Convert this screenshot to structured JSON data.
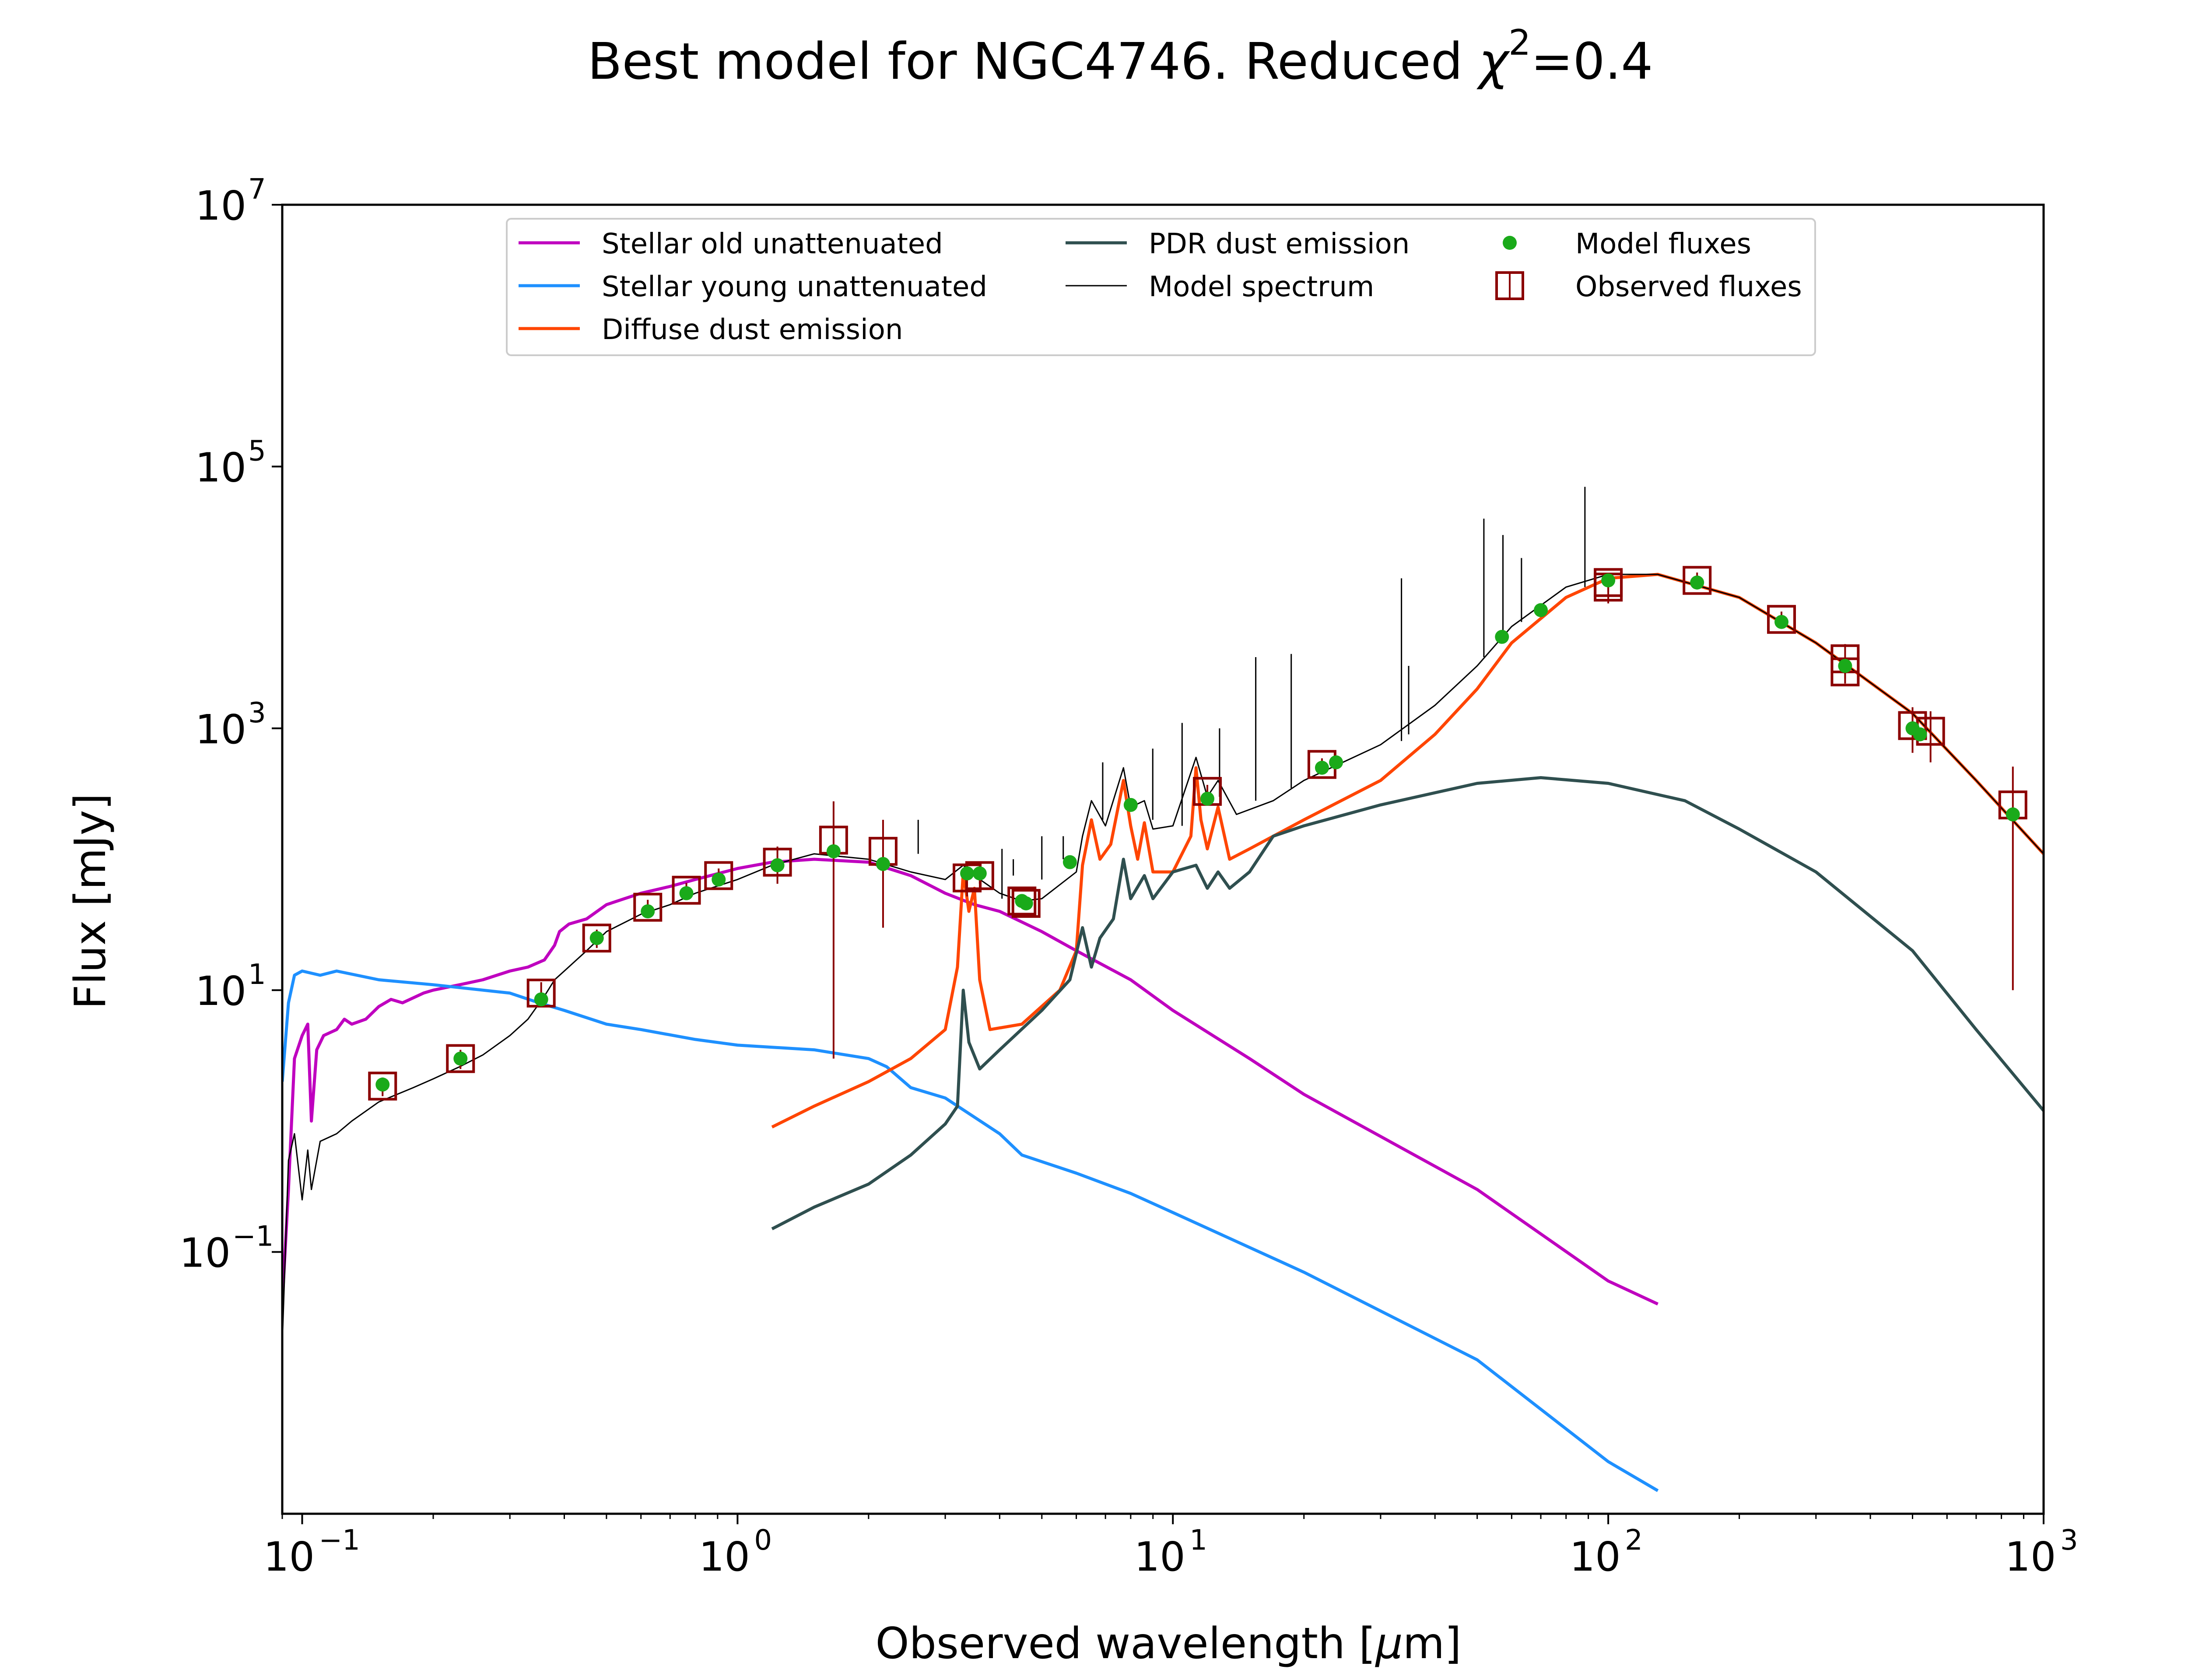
{
  "chart_data": {
    "type": "line",
    "title_main": "Best model for NGC4746. Reduced ",
    "title_chi": "χ",
    "title_sup": "2",
    "title_tail": "=0.4",
    "xlabel_main": "Observed wavelength [",
    "xlabel_mu": "μ",
    "xlabel_tail": "m]",
    "ylabel": "Flux [mJy]",
    "x_scale": "log",
    "y_scale": "log",
    "xlim": [
      0.09,
      1000
    ],
    "ylim": [
      0.001,
      10000000
    ],
    "grid": false,
    "legend_position": "top-center",
    "x_ticks": [
      {
        "value": 0.1,
        "base": "10",
        "exp": "−1"
      },
      {
        "value": 1,
        "base": "10",
        "exp": "0"
      },
      {
        "value": 10,
        "base": "10",
        "exp": "1"
      },
      {
        "value": 100,
        "base": "10",
        "exp": "2"
      },
      {
        "value": 1000,
        "base": "10",
        "exp": "3"
      }
    ],
    "y_ticks": [
      {
        "value": 0.1,
        "base": "10",
        "exp": "−1"
      },
      {
        "value": 10,
        "base": "10",
        "exp": "1"
      },
      {
        "value": 1000,
        "base": "10",
        "exp": "3"
      },
      {
        "value": 100000,
        "base": "10",
        "exp": "5"
      },
      {
        "value": 10000000,
        "base": "10",
        "exp": "7"
      }
    ],
    "series": [
      {
        "name": "Stellar old unattenuated",
        "kind": "line",
        "color": "#bf00bf",
        "points": [
          [
            0.09,
            0.04
          ],
          [
            0.093,
            0.3
          ],
          [
            0.096,
            3.0
          ],
          [
            0.1,
            4.5
          ],
          [
            0.103,
            5.5
          ],
          [
            0.105,
            1.0
          ],
          [
            0.108,
            3.5
          ],
          [
            0.112,
            4.5
          ],
          [
            0.12,
            5.0
          ],
          [
            0.125,
            6.0
          ],
          [
            0.13,
            5.5
          ],
          [
            0.14,
            6.0
          ],
          [
            0.15,
            7.5
          ],
          [
            0.16,
            8.5
          ],
          [
            0.17,
            8.0
          ],
          [
            0.19,
            9.5
          ],
          [
            0.2,
            10
          ],
          [
            0.23,
            11
          ],
          [
            0.26,
            12
          ],
          [
            0.3,
            14
          ],
          [
            0.33,
            15
          ],
          [
            0.36,
            17
          ],
          [
            0.38,
            22
          ],
          [
            0.39,
            28
          ],
          [
            0.41,
            32
          ],
          [
            0.45,
            35
          ],
          [
            0.5,
            45
          ],
          [
            0.55,
            50
          ],
          [
            0.6,
            55
          ],
          [
            0.7,
            62
          ],
          [
            0.8,
            70
          ],
          [
            1.0,
            85
          ],
          [
            1.2,
            95
          ],
          [
            1.5,
            100
          ],
          [
            2.0,
            95
          ],
          [
            2.5,
            75
          ],
          [
            3.0,
            55
          ],
          [
            3.5,
            45
          ],
          [
            4.0,
            40
          ],
          [
            5.0,
            28
          ],
          [
            6.0,
            20
          ],
          [
            8.0,
            12
          ],
          [
            10,
            7
          ],
          [
            15,
            3
          ],
          [
            20,
            1.6
          ],
          [
            50,
            0.3
          ],
          [
            100,
            0.06
          ],
          [
            130,
            0.04
          ]
        ]
      },
      {
        "name": "Stellar young unattenuated",
        "kind": "line",
        "color": "#1e90ff",
        "points": [
          [
            0.09,
            2.0
          ],
          [
            0.093,
            8.0
          ],
          [
            0.096,
            13
          ],
          [
            0.1,
            14
          ],
          [
            0.11,
            13
          ],
          [
            0.12,
            14
          ],
          [
            0.15,
            12
          ],
          [
            0.2,
            11
          ],
          [
            0.3,
            9.5
          ],
          [
            0.35,
            8
          ],
          [
            0.4,
            7
          ],
          [
            0.5,
            5.5
          ],
          [
            0.6,
            5.0
          ],
          [
            0.8,
            4.2
          ],
          [
            1.0,
            3.8
          ],
          [
            1.5,
            3.5
          ],
          [
            2.0,
            3.0
          ],
          [
            2.2,
            2.6
          ],
          [
            2.5,
            1.8
          ],
          [
            3.0,
            1.5
          ],
          [
            4.0,
            0.8
          ],
          [
            4.5,
            0.55
          ],
          [
            6.0,
            0.4
          ],
          [
            8.0,
            0.28
          ],
          [
            10,
            0.2
          ],
          [
            20,
            0.07
          ],
          [
            50,
            0.015
          ],
          [
            100,
            0.0025
          ],
          [
            130,
            0.0015
          ]
        ]
      },
      {
        "name": "Diffuse dust emission",
        "kind": "line",
        "color": "#ff4500",
        "points": [
          [
            1.2,
            0.9
          ],
          [
            1.5,
            1.3
          ],
          [
            2.0,
            2.0
          ],
          [
            2.5,
            3.0
          ],
          [
            3.0,
            5.0
          ],
          [
            3.2,
            15
          ],
          [
            3.3,
            80
          ],
          [
            3.4,
            40
          ],
          [
            3.5,
            60
          ],
          [
            3.6,
            12
          ],
          [
            3.8,
            5.0
          ],
          [
            4.5,
            5.5
          ],
          [
            5.5,
            10
          ],
          [
            6.0,
            20
          ],
          [
            6.2,
            90
          ],
          [
            6.5,
            200
          ],
          [
            6.8,
            100
          ],
          [
            7.2,
            130
          ],
          [
            7.7,
            400
          ],
          [
            8.0,
            180
          ],
          [
            8.3,
            100
          ],
          [
            8.6,
            190
          ],
          [
            9.0,
            80
          ],
          [
            10,
            80
          ],
          [
            11.0,
            150
          ],
          [
            11.3,
            500
          ],
          [
            11.6,
            200
          ],
          [
            12.0,
            120
          ],
          [
            12.7,
            250
          ],
          [
            13.5,
            100
          ],
          [
            15,
            120
          ],
          [
            17,
            150
          ],
          [
            20,
            200
          ],
          [
            30,
            400
          ],
          [
            40,
            900
          ],
          [
            50,
            2000
          ],
          [
            60,
            4500
          ],
          [
            80,
            10000
          ],
          [
            100,
            14000
          ],
          [
            130,
            15000
          ],
          [
            200,
            10000
          ],
          [
            300,
            4500
          ],
          [
            500,
            1300
          ],
          [
            700,
            400
          ],
          [
            1000,
            110
          ]
        ]
      },
      {
        "name": "PDR dust emission",
        "kind": "line",
        "color": "#2f4f4f",
        "points": [
          [
            1.2,
            0.15
          ],
          [
            1.5,
            0.22
          ],
          [
            2.0,
            0.33
          ],
          [
            2.5,
            0.55
          ],
          [
            3.0,
            0.95
          ],
          [
            3.2,
            1.3
          ],
          [
            3.3,
            10
          ],
          [
            3.4,
            4.0
          ],
          [
            3.6,
            2.5
          ],
          [
            4.0,
            3.5
          ],
          [
            5.0,
            7.0
          ],
          [
            5.8,
            12
          ],
          [
            6.2,
            30
          ],
          [
            6.5,
            15
          ],
          [
            6.8,
            25
          ],
          [
            7.3,
            35
          ],
          [
            7.7,
            100
          ],
          [
            8.0,
            50
          ],
          [
            8.6,
            75
          ],
          [
            9.0,
            50
          ],
          [
            10,
            80
          ],
          [
            11.3,
            90
          ],
          [
            12,
            60
          ],
          [
            12.7,
            80
          ],
          [
            13.5,
            60
          ],
          [
            15,
            80
          ],
          [
            17,
            150
          ],
          [
            20,
            180
          ],
          [
            30,
            260
          ],
          [
            50,
            380
          ],
          [
            70,
            420
          ],
          [
            100,
            380
          ],
          [
            150,
            280
          ],
          [
            200,
            170
          ],
          [
            300,
            80
          ],
          [
            500,
            20
          ],
          [
            700,
            5.0
          ],
          [
            1000,
            1.2
          ]
        ]
      },
      {
        "name": "Model spectrum",
        "kind": "line",
        "color": "#000000",
        "points": [
          [
            0.09,
            0.02
          ],
          [
            0.093,
            0.5
          ],
          [
            0.096,
            0.8
          ],
          [
            0.1,
            0.25
          ],
          [
            0.103,
            0.6
          ],
          [
            0.105,
            0.3
          ],
          [
            0.11,
            0.7
          ],
          [
            0.12,
            0.8
          ],
          [
            0.13,
            1.0
          ],
          [
            0.15,
            1.4
          ],
          [
            0.18,
            1.8
          ],
          [
            0.2,
            2.1
          ],
          [
            0.23,
            2.6
          ],
          [
            0.26,
            3.2
          ],
          [
            0.3,
            4.5
          ],
          [
            0.33,
            6.0
          ],
          [
            0.36,
            9.0
          ],
          [
            0.38,
            12
          ],
          [
            0.4,
            14
          ],
          [
            0.45,
            20
          ],
          [
            0.5,
            28
          ],
          [
            0.6,
            38
          ],
          [
            0.7,
            45
          ],
          [
            0.8,
            55
          ],
          [
            1.0,
            70
          ],
          [
            1.2,
            90
          ],
          [
            1.5,
            110
          ],
          [
            2.0,
            100
          ],
          [
            2.5,
            80
          ],
          [
            3.0,
            70
          ],
          [
            3.3,
            90
          ],
          [
            3.5,
            75
          ],
          [
            4.0,
            55
          ],
          [
            4.5,
            48
          ],
          [
            5.0,
            50
          ],
          [
            6.0,
            80
          ],
          [
            6.2,
            150
          ],
          [
            6.5,
            280
          ],
          [
            7.0,
            180
          ],
          [
            7.7,
            500
          ],
          [
            8.0,
            250
          ],
          [
            8.6,
            280
          ],
          [
            9.0,
            170
          ],
          [
            10,
            180
          ],
          [
            11.3,
            600
          ],
          [
            12,
            300
          ],
          [
            12.7,
            400
          ],
          [
            14,
            220
          ],
          [
            17,
            280
          ],
          [
            20,
            400
          ],
          [
            30,
            750
          ],
          [
            40,
            1500
          ],
          [
            50,
            3000
          ],
          [
            60,
            6000
          ],
          [
            80,
            12000
          ],
          [
            100,
            15000
          ],
          [
            130,
            15000
          ],
          [
            200,
            10000
          ],
          [
            300,
            4500
          ],
          [
            500,
            1300
          ],
          [
            700,
            400
          ],
          [
            1000,
            110
          ]
        ]
      }
    ],
    "emission_lines": [
      [
        2.6,
        110,
        200
      ],
      [
        4.05,
        50,
        120
      ],
      [
        4.3,
        75,
        100
      ],
      [
        5.0,
        70,
        150
      ],
      [
        5.6,
        100,
        150
      ],
      [
        6.9,
        200,
        550
      ],
      [
        8.99,
        200,
        700
      ],
      [
        10.5,
        180,
        1100
      ],
      [
        12.8,
        300,
        1000
      ],
      [
        15.5,
        280,
        3500
      ],
      [
        18.7,
        350,
        3700
      ],
      [
        33.5,
        800,
        14000
      ],
      [
        34.8,
        900,
        3000
      ],
      [
        51.8,
        3500,
        40000
      ],
      [
        57.3,
        4500,
        30000
      ],
      [
        63.2,
        6500,
        20000
      ],
      [
        88.4,
        12000,
        70000
      ]
    ],
    "model_fluxes": {
      "name": "Model fluxes",
      "color": "#1aaa1a",
      "points": [
        [
          0.153,
          1.9
        ],
        [
          0.231,
          3.0
        ],
        [
          0.354,
          8.5
        ],
        [
          0.475,
          25
        ],
        [
          0.622,
          40
        ],
        [
          0.763,
          55
        ],
        [
          0.905,
          70
        ],
        [
          1.235,
          90
        ],
        [
          1.662,
          115
        ],
        [
          2.159,
          92
        ],
        [
          3.368,
          78
        ],
        [
          3.6,
          78
        ],
        [
          4.5,
          48
        ],
        [
          4.6,
          46
        ],
        [
          5.8,
          95
        ],
        [
          8.0,
          260
        ],
        [
          12,
          290
        ],
        [
          22,
          500
        ],
        [
          23.7,
          550
        ],
        [
          57,
          5000
        ],
        [
          70,
          8000
        ],
        [
          100,
          13500
        ],
        [
          160,
          13000
        ],
        [
          250,
          6500
        ],
        [
          350,
          3000
        ],
        [
          500,
          1000
        ],
        [
          520,
          900
        ],
        [
          850,
          220
        ]
      ]
    },
    "observed_fluxes": {
      "name": "Observed fluxes",
      "color": "#8b0000",
      "points": [
        [
          0.153,
          1.85,
          0.3
        ],
        [
          0.231,
          3.0,
          0.5
        ],
        [
          0.354,
          9.5,
          2.0
        ],
        [
          0.475,
          25,
          4.0
        ],
        [
          0.622,
          43,
          6.0
        ],
        [
          0.763,
          58,
          8.0
        ],
        [
          0.905,
          75,
          10
        ],
        [
          1.235,
          95,
          30
        ],
        [
          1.662,
          140,
          137
        ],
        [
          2.159,
          115,
          85
        ],
        [
          3.368,
          72,
          20
        ],
        [
          3.6,
          75,
          10
        ],
        [
          4.5,
          48,
          5
        ],
        [
          4.6,
          46,
          5
        ],
        [
          12,
          330,
          40
        ],
        [
          22,
          530,
          60
        ],
        [
          100,
          12000,
          3000
        ],
        [
          100,
          13000,
          2000
        ],
        [
          160,
          13500,
          2000
        ],
        [
          250,
          6800,
          1000
        ],
        [
          350,
          3400,
          1000
        ],
        [
          350,
          2700,
          500
        ],
        [
          500,
          1050,
          400
        ],
        [
          550,
          950,
          400
        ],
        [
          850,
          260,
          250
        ]
      ]
    }
  }
}
